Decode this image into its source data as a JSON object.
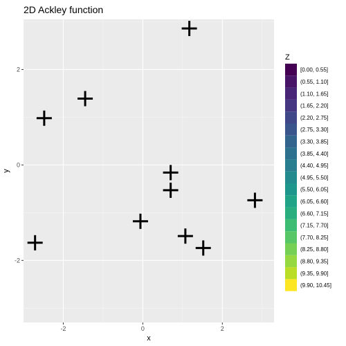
{
  "chart_data": {
    "type": "scatter",
    "title": "2D Ackley function",
    "xlabel": "x",
    "ylabel": "y",
    "xlim": [
      -3.0,
      3.3
    ],
    "ylim": [
      -3.3,
      3.05
    ],
    "x_ticks": [
      -2,
      0,
      2
    ],
    "x_tick_labels": [
      "-2",
      "0",
      "2"
    ],
    "y_ticks": [
      -2,
      0,
      2
    ],
    "y_tick_labels": [
      "-2",
      "0",
      "2"
    ],
    "grid": true,
    "marker": "cross",
    "marker_color": "#000000",
    "background_color": "#ebebeb",
    "points": [
      {
        "x": 1.17,
        "y": 2.86
      },
      {
        "x": -1.45,
        "y": 1.39
      },
      {
        "x": -2.48,
        "y": 0.98
      },
      {
        "x": 0.7,
        "y": -0.16
      },
      {
        "x": 0.7,
        "y": -0.53
      },
      {
        "x": 2.82,
        "y": -0.74
      },
      {
        "x": -0.06,
        "y": -1.18
      },
      {
        "x": 1.07,
        "y": -1.49
      },
      {
        "x": 1.52,
        "y": -1.74
      },
      {
        "x": -2.71,
        "y": -1.63
      }
    ],
    "legend": {
      "title": "Z",
      "placement": "right",
      "entries": [
        {
          "label": "[0.00, 0.55]",
          "color": "#440154"
        },
        {
          "label": "(0.55, 1.10]",
          "color": "#481467"
        },
        {
          "label": "(1.10, 1.65]",
          "color": "#482576"
        },
        {
          "label": "(1.65, 2.20]",
          "color": "#453781"
        },
        {
          "label": "(2.20, 2.75]",
          "color": "#3f4788"
        },
        {
          "label": "(2.75, 3.30]",
          "color": "#39558c"
        },
        {
          "label": "(3.30, 3.85]",
          "color": "#32648e"
        },
        {
          "label": "(3.85, 4.40]",
          "color": "#2d718e"
        },
        {
          "label": "(4.40, 4.95]",
          "color": "#287d8e"
        },
        {
          "label": "(4.95, 5.50]",
          "color": "#238a8d"
        },
        {
          "label": "(5.50, 6.05]",
          "color": "#1f968b"
        },
        {
          "label": "(6.05, 6.60]",
          "color": "#20a386"
        },
        {
          "label": "(6.60, 7.15]",
          "color": "#29af7f"
        },
        {
          "label": "(7.15, 7.70]",
          "color": "#3dbc74"
        },
        {
          "label": "(7.70, 8.25]",
          "color": "#56c667"
        },
        {
          "label": "(8.25, 8.80]",
          "color": "#75d054"
        },
        {
          "label": "(8.80, 9.35]",
          "color": "#95d840"
        },
        {
          "label": "(9.35, 9.90]",
          "color": "#bade28"
        },
        {
          "label": "(9.90, 10.45]",
          "color": "#fde725"
        }
      ]
    }
  }
}
